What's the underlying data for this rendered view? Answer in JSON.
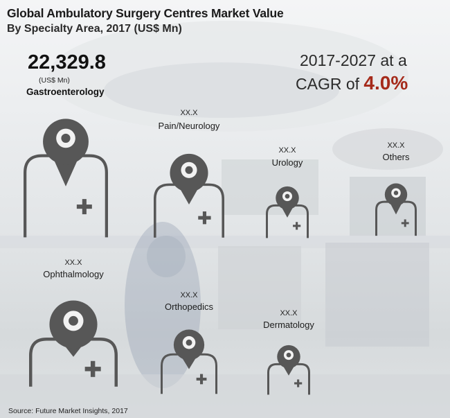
{
  "title": "Global Ambulatory Surgery Centres Market Value",
  "subtitle": "By Specialty Area, 2017 (US$ Mn)",
  "headline": {
    "value": "22,329.8",
    "unit": "(US$ Mn)",
    "category": "Gastroenterology"
  },
  "cagr": {
    "line1": "2017-2027 at a",
    "prefix": "CAGR of ",
    "value": "4.0%",
    "value_color": "#a52a1a"
  },
  "icon_color": "#575757",
  "icon_name": "doctor-person-with-medical-cross-icon",
  "chart_data": {
    "type": "pictograph",
    "title": "Global Ambulatory Surgery Centres Market Value",
    "subtitle": "By Specialty Area, 2017 (US$ Mn)",
    "categories": [
      "Gastroenterology",
      "Pain/Neurology",
      "Urology",
      "Others",
      "Ophthalmology",
      "Orthopedics",
      "Dermatology"
    ],
    "value_labels": [
      "22,329.8",
      "XX.X",
      "XX.X",
      "XX.X",
      "XX.X",
      "XX.X",
      "XX.X"
    ],
    "values": [
      22329.8,
      null,
      null,
      null,
      null,
      null,
      null
    ],
    "unit": "US$ Mn"
  },
  "source": "Source: Future Market Insights, 2017"
}
